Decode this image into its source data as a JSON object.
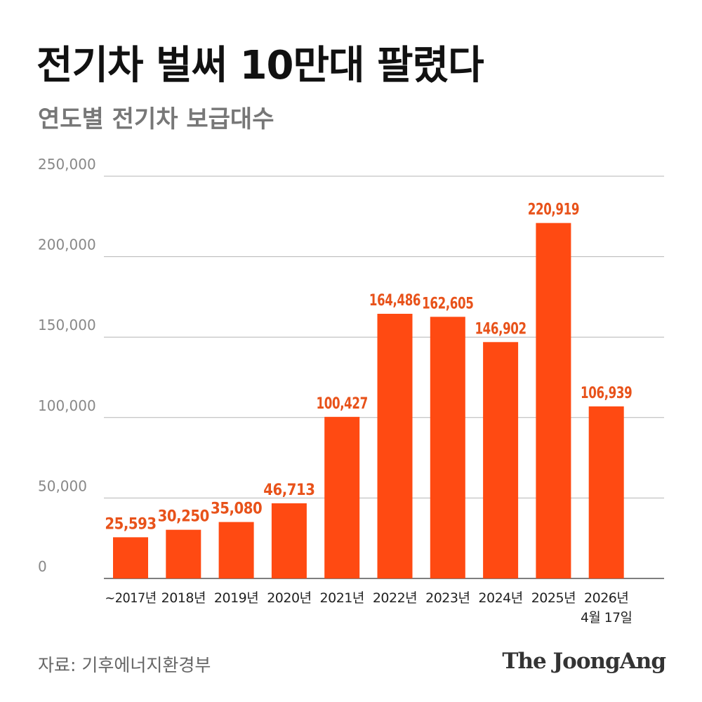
{
  "header": {
    "title": "전기차 벌써 10만대 팔렸다",
    "subtitle": "연도별 전기차 보급대수"
  },
  "footer": {
    "source": "자료: 기후에너지환경부",
    "brand": "The JoongAng"
  },
  "colors": {
    "bar": "#FF4A12",
    "label": "#E8521A",
    "grid": "#B5B5B5",
    "axis_text": "#888888",
    "category_text": "#222222"
  },
  "chart_data": {
    "type": "bar",
    "title": "연도별 전기차 보급대수",
    "xlabel": "",
    "ylabel": "",
    "ylim": [
      0,
      250000
    ],
    "y_ticks": [
      0,
      50000,
      100000,
      150000,
      200000,
      250000
    ],
    "y_tick_labels": [
      "0",
      "50,000",
      "100,000",
      "150,000",
      "200,000",
      "250,000"
    ],
    "grid": true,
    "categories": [
      [
        "~2017년"
      ],
      [
        "2018년"
      ],
      [
        "2019년"
      ],
      [
        "2020년"
      ],
      [
        "2021년"
      ],
      [
        "2022년"
      ],
      [
        "2023년"
      ],
      [
        "2024년"
      ],
      [
        "2025년"
      ],
      [
        "2026년",
        "4월 17일"
      ]
    ],
    "values": [
      25593,
      30250,
      35080,
      46713,
      100427,
      164486,
      162605,
      146902,
      220919,
      106939
    ],
    "value_labels": [
      "25,593",
      "30,250",
      "35,080",
      "46,713",
      "100,427",
      "164,486",
      "162,605",
      "146,902",
      "220,919",
      "106,939"
    ]
  }
}
